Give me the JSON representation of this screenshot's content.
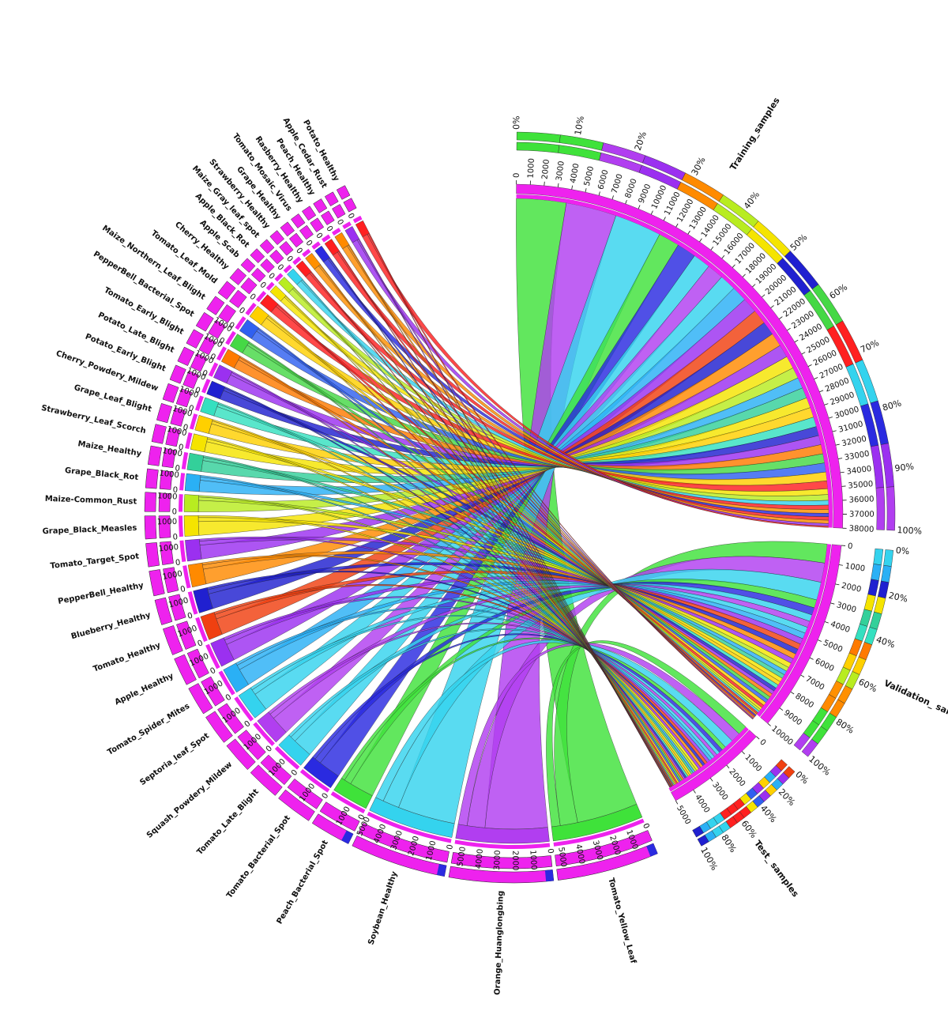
{
  "chart_data": {
    "type": "chord",
    "title": "",
    "groups": [
      "Training_samples",
      "Validation_ samples",
      "Test_ samples"
    ],
    "categories": [
      "Tomato_Yellow_Leaf",
      "Orange_Huanglongbing",
      "Soybean_Healthy",
      "Peach_Bacterial_Spot",
      "Tomato_Bacterial_Spot",
      "Tomato_Late_Blight",
      "Squash_Powdery_Mildew",
      "Septoria_leaf_Spot",
      "Tomato_Spider_Mites",
      "Apple_Healthy",
      "Tomato_Healthy",
      "Blueberry_Healthy",
      "PepperBell_Healthy",
      "Tomato_Target_Spot",
      "Grape_Black_Measles",
      "Maize-Common_Rust",
      "Grape_Black_Rot",
      "Maize_Healthy",
      "Strawberry_Leaf_Scorch",
      "Grape_Leaf_Blight",
      "Cherry_Powdery_Mildew",
      "Potato_Early_Blight",
      "Potato_Late_Blight",
      "Tomato_Early_Blight",
      "PepperBell_Bacterial_Spot",
      "Maize_Northern_Leaf_Blight",
      "Tomato_Leaf_Mold",
      "Cherry_Healthy",
      "Apple_Scab",
      "Apple_Black_Rot",
      "Maize_Gray_leaf_spot",
      "Strawberry_Healthy",
      "Grape_Healthy",
      "Tomato_Mosaic_Virus",
      "Rasberry_Healthy",
      "Peach_Healthy",
      "Apple_Cedar_Rust",
      "Potato_Healthy"
    ],
    "category_totals": [
      5400,
      5500,
      5100,
      2300,
      2100,
      1900,
      1800,
      1770,
      1680,
      1650,
      1600,
      1500,
      1480,
      1400,
      1380,
      1190,
      1180,
      1160,
      1110,
      1080,
      1050,
      1000,
      1000,
      1000,
      1000,
      985,
      950,
      850,
      630,
      620,
      513,
      456,
      423,
      373,
      371,
      360,
      275,
      152
    ],
    "group_totals": [
      38000,
      10500,
      5500
    ],
    "group_ticks": [
      [
        "0",
        "1000",
        "2000",
        "3000",
        "4000",
        "5000",
        "6000",
        "7000",
        "8000",
        "9000",
        "10000",
        "11000",
        "12000",
        "13000",
        "14000",
        "15000",
        "16000",
        "17000",
        "18000",
        "19000",
        "20000",
        "21000",
        "22000",
        "23000",
        "24000",
        "25000",
        "26000",
        "27000",
        "28000",
        "29000",
        "30000",
        "31000",
        "32000",
        "33000",
        "34000",
        "35000",
        "36000",
        "37000",
        "38000"
      ],
      [
        "0",
        "1000",
        "2000",
        "3000",
        "4000",
        "5000",
        "6000",
        "7000",
        "8000",
        "9000",
        "10000"
      ],
      [
        "0",
        "1000",
        "2000",
        "3000",
        "4000",
        "5000"
      ]
    ],
    "category_ticks": [
      "0",
      "1000",
      "2000",
      "3000",
      "4000",
      "5000"
    ],
    "percent_ticks": [
      "0%",
      "10%",
      "20%",
      "30%",
      "40%",
      "50%",
      "60%",
      "70%",
      "80%",
      "90%",
      "100%"
    ],
    "percent_ticks_short": [
      "0%",
      "20%",
      "40%",
      "60%",
      "80%",
      "100%"
    ],
    "split": [
      0.7,
      0.2,
      0.1
    ],
    "colors": [
      "#3fe23a",
      "#b13ef0",
      "#34d3ee",
      "#3fe23a",
      "#2a2ae0",
      "#34d3ee",
      "#b13ef0",
      "#34d3ee",
      "#2ab0f5",
      "#9b30f0",
      "#f04010",
      "#2020d0",
      "#ff8a00",
      "#9b30f0",
      "#f5e400",
      "#b8ec20",
      "#2ab0f5",
      "#33d09a",
      "#f5e400",
      "#ffd000",
      "#35e0c0",
      "#2020d0",
      "#9b30f0",
      "#ff7a00",
      "#45d845",
      "#3060f0",
      "#ffd000",
      "#ff2020",
      "#f5e400",
      "#b8ec20",
      "#34d3ee",
      "#ff2020",
      "#ff9000",
      "#2a2ae0",
      "#ff2020",
      "#ff8a00",
      "#9b30f0",
      "#ff2020"
    ],
    "axis_color": "#ee22ee"
  }
}
